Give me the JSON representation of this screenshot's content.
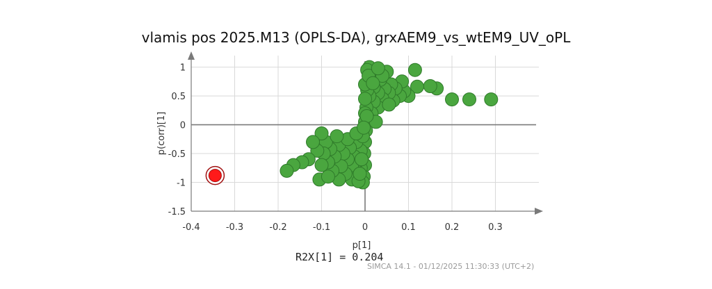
{
  "title": "vlamis pos 2025.M13 (OPLS-DA), grxAEM9_vs_wtEM9_UV_oPL",
  "r2x_text": "R2X[1] = 0.204",
  "footer_text": "SIMCA 14.1 - 01/12/2025 11:30:33 (UTC+2)",
  "colors": {
    "point_fill": "#4aa63f",
    "point_stroke": "#2f7a2a",
    "highlight_fill": "#ff1a1a",
    "highlight_stroke": "#a01010",
    "grid": "#d9d9d9",
    "axis": "#7a7a7a"
  },
  "chart_data": {
    "type": "scatter",
    "xlabel": "p[1]",
    "ylabel": "p(corr)[1]",
    "xlim": [
      -0.4,
      0.4
    ],
    "ylim": [
      -1.5,
      1.2
    ],
    "x_ticks": [
      "-0.4",
      "-0.3",
      "-0.2",
      "-0.1",
      "0",
      "0.1",
      "0.2",
      "0.3"
    ],
    "y_ticks": [
      "1",
      "0.5",
      "0",
      "-0.5",
      "-1",
      "-1.5"
    ],
    "x_tick_values": [
      -0.4,
      -0.3,
      -0.2,
      -0.1,
      0,
      0.1,
      0.2,
      0.3
    ],
    "y_tick_values": [
      1,
      0.5,
      0,
      -0.5,
      -1,
      -1.5
    ],
    "grid": true,
    "highlight": [
      {
        "x": -0.345,
        "y": -0.88
      }
    ],
    "points": [
      [
        0.29,
        0.44
      ],
      [
        0.24,
        0.44
      ],
      [
        0.2,
        0.44
      ],
      [
        0.165,
        0.63
      ],
      [
        0.15,
        0.67
      ],
      [
        0.12,
        0.66
      ],
      [
        0.115,
        0.95
      ],
      [
        0.1,
        0.5
      ],
      [
        0.09,
        0.58
      ],
      [
        0.08,
        0.5
      ],
      [
        0.085,
        0.75
      ],
      [
        0.07,
        0.63
      ],
      [
        0.065,
        0.42
      ],
      [
        0.06,
        0.7
      ],
      [
        0.055,
        0.55
      ],
      [
        0.05,
        0.92
      ],
      [
        0.045,
        0.62
      ],
      [
        0.04,
        0.45
      ],
      [
        0.035,
        0.78
      ],
      [
        0.03,
        0.55
      ],
      [
        0.03,
        0.3
      ],
      [
        0.025,
        0.9
      ],
      [
        0.02,
        0.65
      ],
      [
        0.02,
        0.4
      ],
      [
        0.015,
        0.2
      ],
      [
        0.015,
        0.8
      ],
      [
        0.01,
        1.0
      ],
      [
        0.01,
        0.5
      ],
      [
        0.008,
        0.1
      ],
      [
        0.005,
        0.95
      ],
      [
        0.005,
        0.6
      ],
      [
        0.003,
        0.3
      ],
      [
        0.0,
        0.7
      ],
      [
        0.0,
        0.45
      ],
      [
        0.0,
        0.2
      ],
      [
        0.0,
        0.05
      ],
      [
        0.04,
        0.85
      ],
      [
        0.055,
        0.35
      ],
      [
        0.025,
        0.05
      ],
      [
        0.008,
        0.85
      ],
      [
        0.018,
        0.72
      ],
      [
        0.03,
        0.98
      ],
      [
        0.002,
        -0.1
      ],
      [
        0.0,
        -0.3
      ],
      [
        -0.002,
        -0.5
      ],
      [
        0.0,
        -0.7
      ],
      [
        -0.003,
        -0.9
      ],
      [
        -0.005,
        -1.0
      ],
      [
        -0.01,
        -0.75
      ],
      [
        -0.01,
        -0.45
      ],
      [
        -0.015,
        -0.62
      ],
      [
        -0.02,
        -0.85
      ],
      [
        -0.02,
        -0.3
      ],
      [
        -0.025,
        -0.55
      ],
      [
        -0.03,
        -0.95
      ],
      [
        -0.03,
        -0.7
      ],
      [
        -0.035,
        -0.4
      ],
      [
        -0.04,
        -0.6
      ],
      [
        -0.045,
        -0.85
      ],
      [
        -0.05,
        -0.5
      ],
      [
        -0.055,
        -0.72
      ],
      [
        -0.06,
        -0.95
      ],
      [
        -0.06,
        -0.35
      ],
      [
        -0.07,
        -0.55
      ],
      [
        -0.075,
        -0.8
      ],
      [
        -0.08,
        -0.42
      ],
      [
        -0.085,
        -0.65
      ],
      [
        -0.09,
        -0.3
      ],
      [
        -0.095,
        -0.5
      ],
      [
        -0.1,
        -0.15
      ],
      [
        -0.1,
        -0.7
      ],
      [
        -0.105,
        -0.95
      ],
      [
        -0.11,
        -0.45
      ],
      [
        -0.12,
        -0.3
      ],
      [
        -0.13,
        -0.6
      ],
      [
        -0.145,
        -0.65
      ],
      [
        -0.165,
        -0.7
      ],
      [
        -0.18,
        -0.8
      ],
      [
        -0.015,
        -0.98
      ],
      [
        -0.005,
        -0.2
      ],
      [
        -0.008,
        -0.6
      ],
      [
        -0.012,
        -0.85
      ],
      [
        -0.04,
        -0.25
      ],
      [
        -0.065,
        -0.2
      ],
      [
        -0.085,
        -0.9
      ],
      [
        -0.02,
        -0.15
      ],
      [
        0.004,
        0.15
      ],
      [
        -0.003,
        -0.05
      ]
    ]
  }
}
